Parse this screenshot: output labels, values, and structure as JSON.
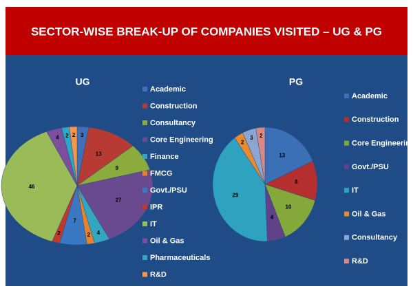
{
  "title": "SECTOR-WISE BREAK-UP OF COMPANIES VISITED – UG & PG",
  "chart_data": [
    {
      "type": "pie",
      "title": "UG",
      "categories": [
        "Academic",
        "Construction",
        "Consultancy",
        "Core Engineering",
        "Finance",
        "FMCG",
        "Govt./PSU",
        "IPR",
        "IT",
        "Oil & Gas",
        "Pharmaceuticals",
        "R&D"
      ],
      "values": [
        3,
        13,
        9,
        27,
        4,
        2,
        7,
        2,
        46,
        4,
        2,
        2
      ],
      "colors": [
        "#3f6fb5",
        "#b83a35",
        "#8bab3d",
        "#6a4a8e",
        "#34a6c0",
        "#e8822a",
        "#3b78c4",
        "#c0392b",
        "#9bbb59",
        "#7b4f9e",
        "#2ea8c5",
        "#f79646"
      ]
    },
    {
      "type": "pie",
      "title": "PG",
      "categories": [
        "Academic",
        "Construction",
        "Core Engineering",
        "Govt./PSU",
        "IT",
        "Oil & Gas",
        "Consultancy",
        "R&D"
      ],
      "values": [
        13,
        8,
        10,
        4,
        29,
        2,
        3,
        2
      ],
      "colors": [
        "#3b6fb6",
        "#b52f2f",
        "#84a83a",
        "#61428a",
        "#2fa2c0",
        "#e98a2c",
        "#8ba6d0",
        "#d98886"
      ]
    }
  ]
}
